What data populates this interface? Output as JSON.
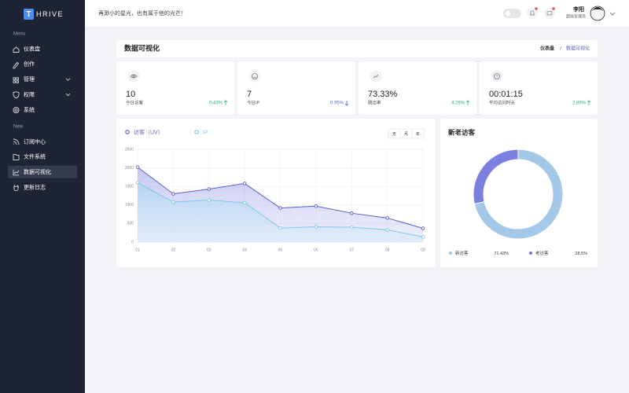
{
  "sidebar": {
    "logo_letter": "T",
    "logo_text": "HRIVE",
    "sections": [
      {
        "label": "Menu",
        "items": [
          {
            "text": "仪表盘",
            "icon": "home"
          },
          {
            "text": "创作",
            "icon": "pen"
          },
          {
            "text": "管理",
            "icon": "grid",
            "expandable": true
          },
          {
            "text": "权限",
            "icon": "shield",
            "expandable": true
          },
          {
            "text": "系统",
            "icon": "gear"
          }
        ]
      },
      {
        "label": "New",
        "items": [
          {
            "text": "订阅中心",
            "icon": "rss"
          },
          {
            "text": "文件系统",
            "icon": "folder"
          },
          {
            "text": "数据可视化",
            "icon": "chart",
            "active": true
          },
          {
            "text": "更新日志",
            "icon": "bug"
          }
        ]
      }
    ]
  },
  "header": {
    "slogan": "再渺小的星光，也有属于他的光芒！",
    "user": {
      "name": "李阳",
      "role": "超级管理员"
    }
  },
  "page": {
    "title": "数据可视化",
    "breadcrumb": [
      "仪表盘",
      "/",
      "数据可视化"
    ]
  },
  "stats": [
    {
      "value": "10",
      "label": "今日访客",
      "change": "0.43%",
      "trend": "up",
      "icon": "eye"
    },
    {
      "value": "7",
      "label": "今日IP",
      "change": "0.95%",
      "trend": "down",
      "icon": "smile"
    },
    {
      "value": "73.33%",
      "label": "跳出率",
      "change": "4.26%",
      "trend": "up",
      "icon": "trend"
    },
    {
      "value": "00:01:15",
      "label": "平均访问时长",
      "change": "2.89%",
      "trend": "up",
      "icon": "clock"
    }
  ],
  "chart_data": [
    {
      "type": "line",
      "range_buttons": [
        "天",
        "月",
        "年"
      ],
      "categories": [
        "01",
        "02",
        "03",
        "04",
        "05",
        "06",
        "07",
        "08",
        "09"
      ],
      "series": [
        {
          "name": "访客（UV）",
          "color": "#5b5fc7",
          "values": [
            2020,
            1300,
            1430,
            1580,
            920,
            970,
            780,
            650,
            370
          ]
        },
        {
          "name": "IP",
          "color": "#7ec8e8",
          "values": [
            1600,
            1080,
            1130,
            1060,
            380,
            410,
            400,
            330,
            140
          ]
        }
      ],
      "ylim": [
        0,
        2500
      ],
      "yticks": [
        0,
        500,
        1000,
        1500,
        2000,
        2500
      ],
      "grid": true
    },
    {
      "type": "pie",
      "title": "新老访客",
      "categories": [
        "新访客",
        "老访客"
      ],
      "values": [
        71.43,
        28.5
      ],
      "value_labels": [
        "71.43%",
        "28.5%"
      ],
      "colors": [
        "#a4c8e8",
        "#7b7fe0"
      ],
      "donut": true
    }
  ]
}
